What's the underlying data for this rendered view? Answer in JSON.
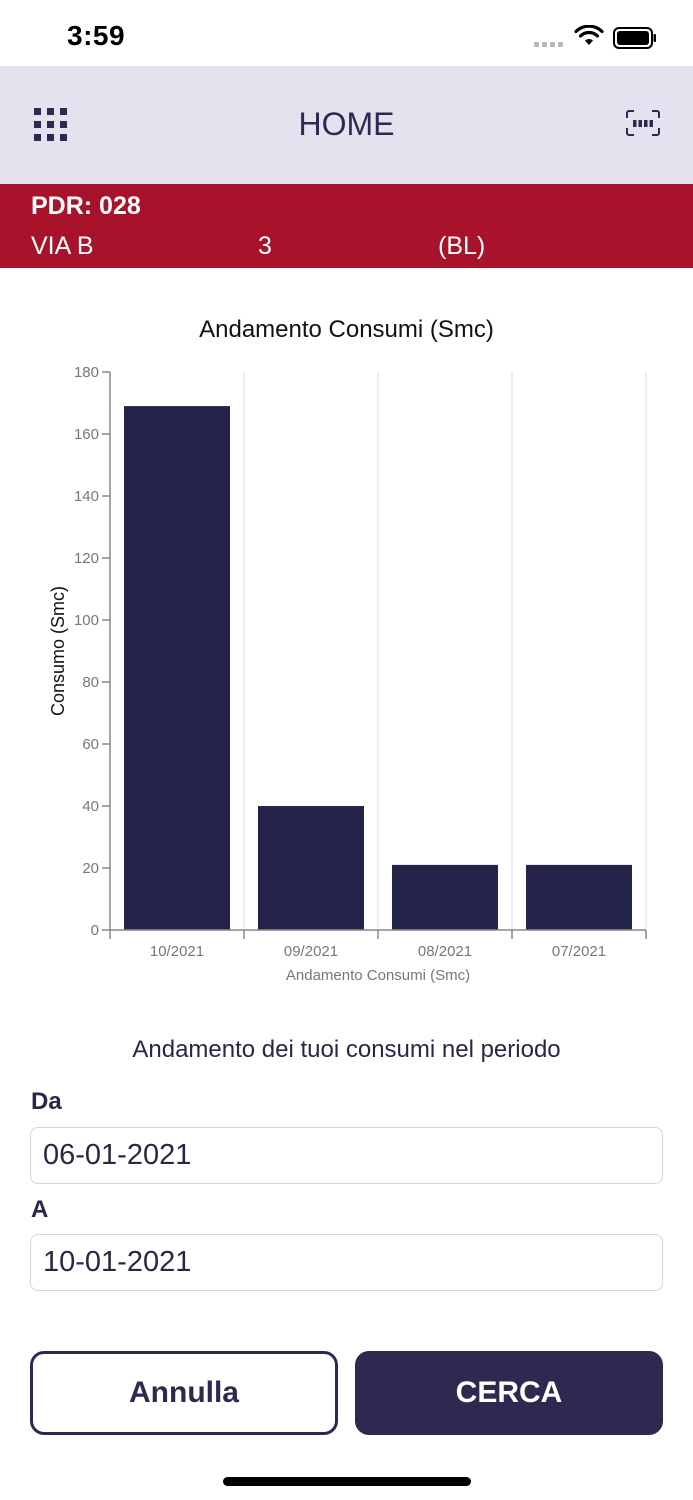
{
  "status_bar": {
    "time": "3:59"
  },
  "header": {
    "title": "HOME",
    "menu_icon": "grid-icon",
    "scan_icon": "barcode-scan-icon"
  },
  "pdr": {
    "code": "PDR: 028",
    "street": "VIA B",
    "number": "3",
    "province": "(BL)"
  },
  "chart_data": {
    "type": "bar",
    "title": "Andamento Consumi (Smc)",
    "xlabel": "Andamento Consumi (Smc)",
    "ylabel": "Consumo (Smc)",
    "categories": [
      "10/2021",
      "09/2021",
      "08/2021",
      "07/2021"
    ],
    "values": [
      169,
      40,
      21,
      21
    ],
    "ylim": [
      0,
      180
    ],
    "yticks": [
      0,
      20,
      40,
      60,
      80,
      100,
      120,
      140,
      160,
      180
    ],
    "grid": "vertical",
    "bar_color": "#24244a"
  },
  "period": {
    "caption": "Andamento dei tuoi consumi nel periodo",
    "from_label": "Da",
    "from_value": "06-01-2021",
    "to_label": "A",
    "to_value": "10-01-2021"
  },
  "actions": {
    "cancel_label": "Annulla",
    "search_label": "CERCA"
  },
  "colors": {
    "header_bg": "#e6e1ef",
    "banner_bg": "#a8132b",
    "primary": "#2f2850"
  }
}
